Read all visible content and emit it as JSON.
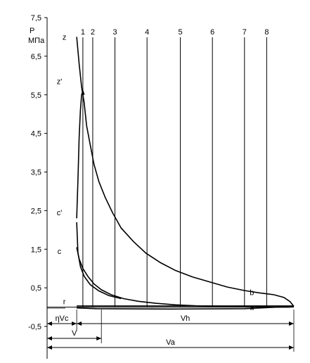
{
  "chart_data": {
    "type": "line",
    "title": "",
    "xlabel": "",
    "ylabel": "P",
    "ylabel_unit": "МПа",
    "ylim": [
      -0.5,
      7.5
    ],
    "yticks": [
      "7,5",
      "6,5",
      "5,5",
      "4,5",
      "3,5",
      "2,5",
      "1,5",
      "0,5",
      "-0,5"
    ],
    "ytick_values": [
      7.5,
      6.5,
      5.5,
      4.5,
      3.5,
      2.5,
      1.5,
      0.5,
      -0.5
    ],
    "x_units": "fraction of Va",
    "xlim": [
      0,
      1
    ],
    "vertical_lines": [
      {
        "label": "1",
        "x": 0.145
      },
      {
        "label": "2",
        "x": 0.185
      },
      {
        "label": "3",
        "x": 0.275
      },
      {
        "label": "4",
        "x": 0.405
      },
      {
        "label": "5",
        "x": 0.54
      },
      {
        "label": "6",
        "x": 0.67
      },
      {
        "label": "7",
        "x": 0.8
      },
      {
        "label": "8",
        "x": 0.89
      }
    ],
    "point_labels": [
      {
        "label": "z",
        "x": 0.07,
        "y": 7.0
      },
      {
        "label": "z'",
        "x": 0.05,
        "y": 5.85
      },
      {
        "label": "c'",
        "x": 0.05,
        "y": 2.45
      },
      {
        "label": "c",
        "x": 0.05,
        "y": 1.45
      },
      {
        "label": "r",
        "x": 0.07,
        "y": 0.15
      },
      {
        "label": "b",
        "x": 0.83,
        "y": 0.38
      },
      {
        "label": "a",
        "x": 0.83,
        "y": 0.0
      }
    ],
    "series": [
      {
        "x": [
          0.12,
          0.13,
          0.14,
          0.15,
          0.16,
          0.175,
          0.19,
          0.21,
          0.235,
          0.265,
          0.3,
          0.35,
          0.4,
          0.46,
          0.52,
          0.59,
          0.66,
          0.73,
          0.8,
          0.86,
          0.92,
          0.96,
          0.985,
          1.0
        ],
        "y": [
          7.0,
          6.3,
          5.7,
          5.3,
          4.7,
          4.2,
          3.7,
          3.25,
          2.85,
          2.45,
          2.05,
          1.7,
          1.4,
          1.15,
          0.95,
          0.78,
          0.65,
          0.52,
          0.43,
          0.37,
          0.32,
          0.25,
          0.14,
          0.02
        ]
      },
      {
        "x": [
          0.12,
          0.125,
          0.13,
          0.135,
          0.14,
          0.145,
          0.15
        ],
        "y": [
          2.3,
          3.3,
          4.4,
          5.1,
          5.5,
          5.6,
          5.5
        ]
      },
      {
        "x": [
          0.12,
          0.13,
          0.145,
          0.165,
          0.19,
          0.22,
          0.26,
          0.31,
          0.37,
          0.44,
          0.52,
          0.62,
          0.72,
          0.82,
          0.92,
          0.98,
          1.0
        ],
        "y": [
          1.55,
          1.25,
          1.0,
          0.8,
          0.6,
          0.45,
          0.32,
          0.22,
          0.15,
          0.1,
          0.06,
          0.03,
          0.02,
          0.01,
          0.0,
          0.0,
          0.02
        ]
      },
      {
        "x": [
          0.12,
          0.125,
          0.135,
          0.15,
          0.175,
          0.21,
          0.25,
          0.3
        ],
        "y": [
          2.2,
          1.4,
          1.05,
          0.8,
          0.58,
          0.42,
          0.3,
          0.22
        ]
      },
      {
        "x": [
          0.12,
          0.3,
          0.6,
          1.0
        ],
        "y": [
          0.03,
          0.03,
          0.03,
          0.03
        ]
      },
      {
        "x": [
          0.12,
          0.2,
          0.5,
          0.8,
          1.0
        ],
        "y": [
          -0.02,
          -0.04,
          -0.05,
          -0.04,
          0.02
        ]
      }
    ],
    "dimensions": [
      {
        "label": "ηVc",
        "from": 0.0,
        "to": 0.12,
        "row": 1
      },
      {
        "label": "Vh",
        "from": 0.12,
        "to": 1.0,
        "row": 1
      },
      {
        "label": "V",
        "from": 0.0,
        "to": 0.22,
        "row": 2
      },
      {
        "label": "Va",
        "from": 0.0,
        "to": 1.0,
        "row": 3
      }
    ],
    "grid": false,
    "legend": "none"
  }
}
